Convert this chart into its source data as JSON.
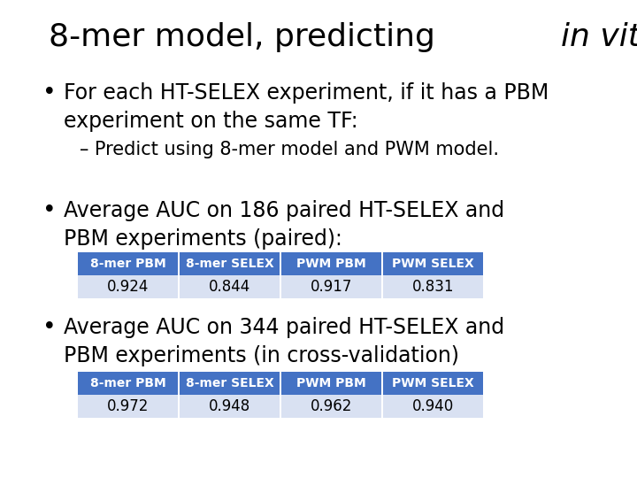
{
  "title_normal": "8-mer model, predicting ",
  "title_italic": "in vitro",
  "bullet1_line1": "For each HT-SELEX experiment, if it has a PBM",
  "bullet1_line2": "experiment on the same TF:",
  "sub_bullet": "– Predict using 8-mer model and PWM model.",
  "bullet2_line1": "Average AUC on 186 paired HT-SELEX and",
  "bullet2_line2": "PBM experiments (paired):",
  "bullet3_line1": "Average AUC on 344 paired HT-SELEX and",
  "bullet3_line2": "PBM experiments (in cross-validation)",
  "table1_headers": [
    "8-mer PBM",
    "8-mer SELEX",
    "PWM PBM",
    "PWM SELEX"
  ],
  "table1_values": [
    "0.924",
    "0.844",
    "0.917",
    "0.831"
  ],
  "table2_headers": [
    "8-mer PBM",
    "8-mer SELEX",
    "PWM PBM",
    "PWM SELEX"
  ],
  "table2_values": [
    "0.972",
    "0.948",
    "0.962",
    "0.940"
  ],
  "header_bg_color": "#4472C4",
  "header_text_color": "#FFFFFF",
  "value_bg_color": "#D9E1F2",
  "value_text_color": "#000000",
  "bg_color": "#FFFFFF",
  "title_fontsize": 26,
  "bullet_fontsize": 17,
  "sub_bullet_fontsize": 15,
  "table_header_fontsize": 10,
  "table_value_fontsize": 12
}
